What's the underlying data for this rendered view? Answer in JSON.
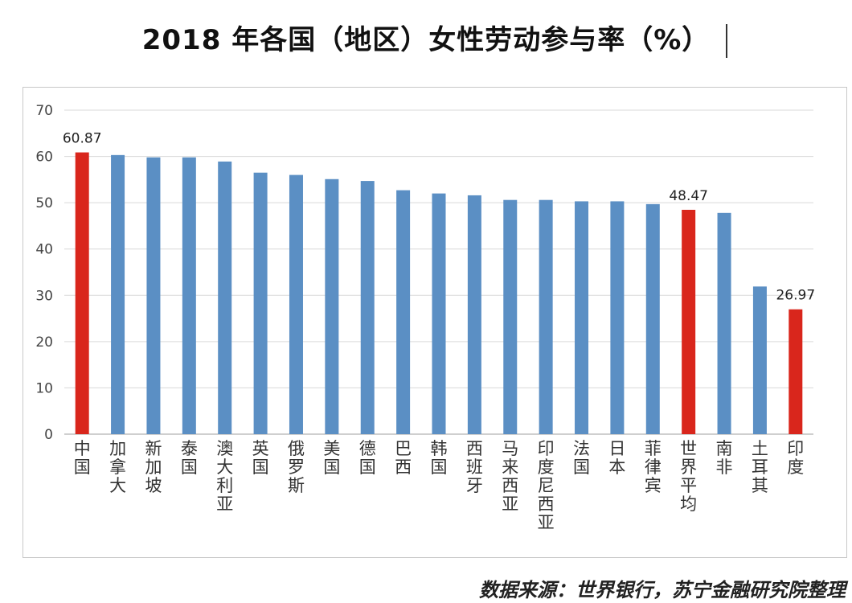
{
  "page": {
    "title": "2018 年各国（地区）女性劳动参与率（%）",
    "source": "数据来源：世界银行，苏宁金融研究院整理"
  },
  "colors": {
    "normal": "#5b8fc4",
    "highlight": "#d9261c",
    "grid": "#d9d9d9",
    "axis": "#bfbfbf"
  },
  "chart_data": {
    "type": "bar",
    "title": "2018 年各国（地区）女性劳动参与率（%）",
    "xlabel": "",
    "ylabel": "",
    "ylim": [
      0,
      70
    ],
    "yticks": [
      0,
      10,
      20,
      30,
      40,
      50,
      60,
      70
    ],
    "grid": true,
    "categories": [
      "中国",
      "加拿大",
      "新加坡",
      "泰国",
      "澳大利亚",
      "英国",
      "俄罗斯",
      "美国",
      "德国",
      "巴西",
      "韩国",
      "西班牙",
      "马来西亚",
      "印度尼西亚",
      "法国",
      "日本",
      "菲律宾",
      "世界平均",
      "南非",
      "土耳其",
      "印度"
    ],
    "values": [
      60.87,
      60.3,
      59.8,
      59.8,
      58.9,
      56.5,
      56.0,
      55.1,
      54.7,
      52.7,
      52.0,
      51.6,
      50.6,
      50.6,
      50.3,
      50.3,
      49.7,
      48.47,
      47.8,
      31.9,
      26.97
    ],
    "highlighted": [
      "中国",
      "世界平均",
      "印度"
    ],
    "data_labels": [
      {
        "category": "中国",
        "text": "60.87"
      },
      {
        "category": "世界平均",
        "text": "48.47"
      },
      {
        "category": "印度",
        "text": "26.97"
      }
    ]
  }
}
